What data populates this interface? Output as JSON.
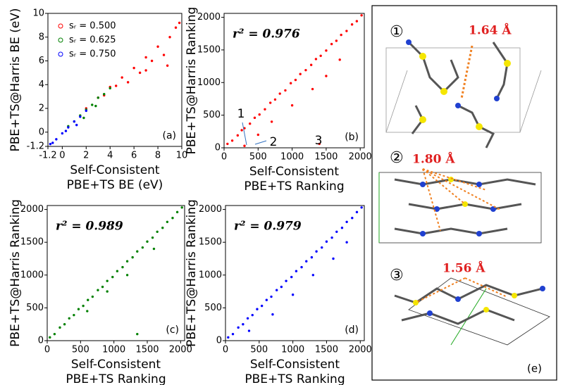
{
  "chart_data": [
    {
      "type": "scatter",
      "panel": "(a)",
      "xlabel": [
        "Self-Consistent",
        "PBE+TS BE (eV)"
      ],
      "ylabel": "PBE+TS@Harris BE (eV)",
      "xlim": [
        -1.2,
        10
      ],
      "ylim": [
        -1.2,
        10
      ],
      "xticks": [
        -1.2,
        0,
        2,
        4,
        6,
        8,
        10
      ],
      "yticks": [
        -1.2,
        0,
        2,
        4,
        6,
        8,
        10
      ],
      "legend": "upper left",
      "series": [
        {
          "name": "sᵣ = 0.500",
          "color": "#ff0000",
          "x": [
            2,
            3,
            4,
            5,
            6,
            7,
            8,
            9,
            9.5,
            5.5,
            6.5,
            7.5,
            8.5,
            4.5,
            3.5,
            9.8,
            7,
            8.8
          ],
          "values": [
            2,
            2.9,
            3.8,
            4.6,
            5.4,
            6.3,
            7.2,
            8,
            8.8,
            4.2,
            5,
            6,
            6.5,
            3.9,
            3.1,
            9.2,
            5.2,
            5.6
          ]
        },
        {
          "name": "sᵣ = 0.625",
          "color": "#008000",
          "x": [
            0.5,
            1,
            1.5,
            2,
            2.5,
            3,
            3.5,
            4,
            1.8,
            2.8
          ],
          "values": [
            0.5,
            0.9,
            1.4,
            1.9,
            2.3,
            2.9,
            3.2,
            3.7,
            1.2,
            2.2
          ]
        },
        {
          "name": "sᵣ = 0.750",
          "color": "#0000ff",
          "x": [
            -1,
            -0.5,
            0,
            0.5,
            1,
            1.5,
            2,
            -0.8,
            0.3,
            1.2
          ],
          "values": [
            -1,
            -0.6,
            -0.1,
            0.4,
            0.9,
            1.3,
            1.8,
            -0.9,
            0.1,
            0.6
          ]
        }
      ]
    },
    {
      "type": "scatter",
      "panel": "(b)",
      "r2": "r² = 0.976",
      "annotations": [
        "1",
        "2",
        "3"
      ],
      "xlabel": [
        "Self-Consistent",
        "PBE+TS Ranking"
      ],
      "ylabel": "PBE+TS@Harris Ranking",
      "xlim": [
        0,
        2060
      ],
      "ylim": [
        0,
        2060
      ],
      "xticks": [
        0,
        500,
        1000,
        1500,
        2000
      ],
      "yticks": [
        0,
        500,
        1000,
        1500,
        2000
      ],
      "series": [
        {
          "color": "#ff0000",
          "x": [
            50,
            120,
            200,
            260,
            300,
            380,
            450,
            520,
            600,
            680,
            750,
            820,
            900,
            980,
            1050,
            1120,
            1200,
            1280,
            1350,
            1420,
            1500,
            1580,
            1650,
            1720,
            1800,
            1880,
            1950,
            2020,
            300,
            500,
            700,
            1000,
            1300,
            1500,
            1700,
            1400
          ],
          "values": [
            60,
            110,
            190,
            270,
            300,
            370,
            460,
            510,
            590,
            690,
            740,
            830,
            880,
            990,
            1040,
            1130,
            1190,
            1270,
            1360,
            1410,
            1490,
            1590,
            1640,
            1730,
            1790,
            1890,
            1940,
            2030,
            30,
            200,
            400,
            650,
            900,
            1100,
            1350,
            60
          ]
        }
      ]
    },
    {
      "type": "scatter",
      "panel": "(c)",
      "r2": "r² = 0.989",
      "xlabel": [
        "Self-Consistent",
        "PBE+TS Ranking"
      ],
      "ylabel": "PBE+TS@Harris Ranking",
      "xlim": [
        0,
        2060
      ],
      "ylim": [
        0,
        2060
      ],
      "xticks": [
        0,
        500,
        1000,
        1500,
        2000
      ],
      "yticks": [
        0,
        500,
        1000,
        1500,
        2000
      ],
      "series": [
        {
          "color": "#008000",
          "x": [
            40,
            110,
            190,
            260,
            330,
            400,
            470,
            540,
            610,
            680,
            760,
            830,
            900,
            980,
            1050,
            1130,
            1200,
            1280,
            1350,
            1430,
            1500,
            1580,
            1650,
            1730,
            1800,
            1880,
            1950,
            2020,
            600,
            900,
            1200,
            1350,
            1600
          ],
          "values": [
            50,
            100,
            200,
            250,
            340,
            390,
            480,
            530,
            620,
            670,
            770,
            820,
            910,
            970,
            1060,
            1120,
            1210,
            1270,
            1360,
            1420,
            1510,
            1570,
            1660,
            1720,
            1810,
            1870,
            1960,
            2030,
            450,
            750,
            1000,
            100,
            1400
          ]
        }
      ]
    },
    {
      "type": "scatter",
      "panel": "(d)",
      "r2": "r² = 0.979",
      "xlabel": [
        "Self-Consistent",
        "PBE+TS Ranking"
      ],
      "ylabel": "PBE+TS@Harris Ranking",
      "xlim": [
        0,
        2060
      ],
      "ylim": [
        0,
        2060
      ],
      "xticks": [
        0,
        500,
        1000,
        1500,
        2000
      ],
      "yticks": [
        0,
        500,
        1000,
        1500,
        2000
      ],
      "series": [
        {
          "color": "#0000ff",
          "x": [
            40,
            110,
            190,
            260,
            330,
            400,
            470,
            540,
            610,
            680,
            760,
            830,
            900,
            980,
            1050,
            1130,
            1200,
            1280,
            1350,
            1430,
            1500,
            1580,
            1650,
            1730,
            1800,
            1880,
            1950,
            2020,
            350,
            700,
            1000,
            1300,
            1600,
            1800
          ],
          "values": [
            50,
            100,
            200,
            250,
            340,
            390,
            480,
            530,
            620,
            670,
            770,
            820,
            910,
            970,
            1060,
            1120,
            1210,
            1270,
            1360,
            1420,
            1510,
            1570,
            1660,
            1720,
            1810,
            1870,
            1960,
            2030,
            150,
            400,
            700,
            1000,
            1250,
            1500
          ]
        }
      ]
    }
  ],
  "panel_e": {
    "labels": [
      "①",
      "②",
      "③"
    ],
    "distances": [
      "1.64 Å",
      "1.80 Å",
      "1.56 Å"
    ],
    "tag": "(e)"
  }
}
